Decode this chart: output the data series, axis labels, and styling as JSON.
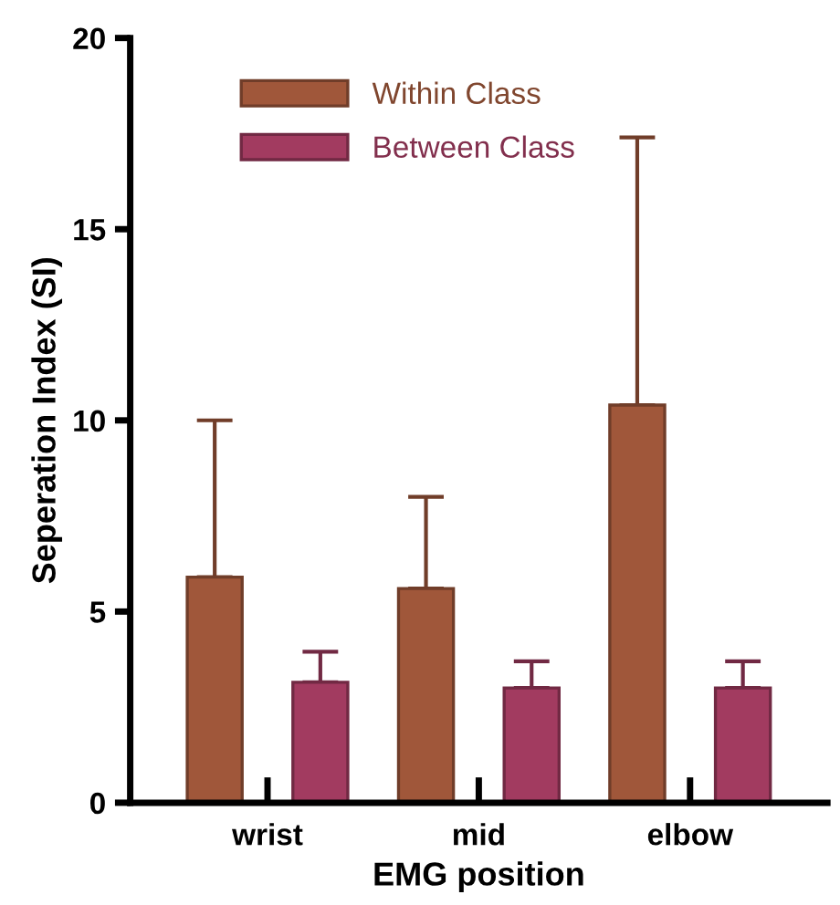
{
  "chart_data": {
    "type": "bar",
    "xlabel": "EMG position",
    "ylabel": "Seperation Index (SI)",
    "categories": [
      "wrist",
      "mid",
      "elbow"
    ],
    "series": [
      {
        "name": "Within Class",
        "color": "#a0573a",
        "values": [
          5.9,
          5.6,
          10.4
        ],
        "errors": [
          [
            5.9,
            10.0
          ],
          [
            5.6,
            8.0
          ],
          [
            10.4,
            17.4
          ]
        ]
      },
      {
        "name": "Between Class",
        "color": "#a23b60",
        "values": [
          3.15,
          3.0,
          3.0
        ],
        "errors": [
          [
            3.15,
            3.95
          ],
          [
            3.0,
            3.7
          ],
          [
            3.0,
            3.7
          ]
        ]
      }
    ],
    "ylim": [
      0,
      20
    ],
    "yticks": [
      0,
      5,
      10,
      15,
      20
    ],
    "grid": false,
    "legend": "top left"
  }
}
